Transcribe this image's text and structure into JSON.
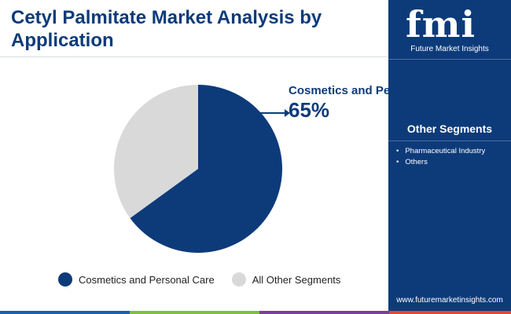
{
  "header": {
    "title": "Cetyl Palmitate Market Analysis by Application"
  },
  "chart_data": {
    "type": "pie",
    "categories": [
      "Cosmetics and Personal Care",
      "All Other Segments"
    ],
    "values": [
      65,
      35
    ],
    "colors": [
      "#0d3b7a",
      "#d9d9d9"
    ],
    "legend_position": "bottom",
    "callout": {
      "label": "Cosmetics and Personal Care",
      "value": "65%"
    }
  },
  "legend": {
    "items": [
      {
        "label": "Cosmetics and Personal Care",
        "color": "#0d3b7a"
      },
      {
        "label": "All Other Segments",
        "color": "#d9d9d9"
      }
    ]
  },
  "sidebar": {
    "logo_text": "fmi",
    "logo_subtitle": "Future Market Insights",
    "other_segments_title": "Other Segments",
    "other_segments": [
      "Pharmaceutical Industry",
      "Others"
    ],
    "url": "www.futuremarketinsights.com"
  },
  "colors": {
    "brand_navy": "#0d3b7a",
    "bottom_bar": [
      "#1d5fb3",
      "#7cc142",
      "#7a3f9a",
      "#e2472f"
    ]
  }
}
